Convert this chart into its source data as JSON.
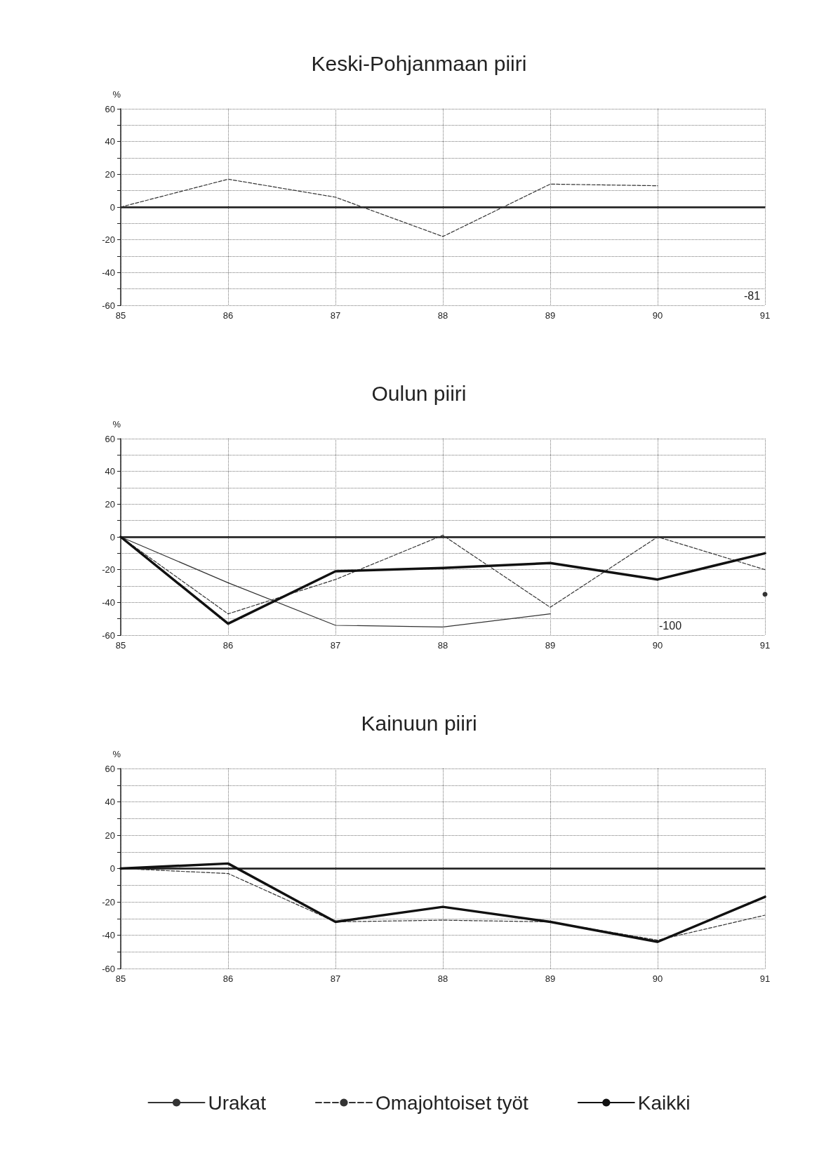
{
  "chart_data": [
    {
      "type": "line",
      "title": "Keski-Pohjanmaan piiri",
      "ylabel": "%",
      "categories": [
        "85",
        "86",
        "87",
        "88",
        "89",
        "90",
        "91"
      ],
      "series": [
        {
          "color": "#333333",
          "line_style": "dashed",
          "values": [
            0,
            17,
            6,
            -18,
            14,
            13,
            null
          ]
        }
      ],
      "ylim": [
        -60,
        60
      ],
      "yticks": [
        -60,
        {
          "value": -50,
          "label": null
        },
        -40,
        {
          "value": -30,
          "label": null
        },
        -20,
        {
          "value": -10,
          "label": null
        },
        0,
        {
          "value": 10,
          "label": null
        },
        20,
        {
          "value": 30,
          "label": null
        },
        40,
        {
          "value": 50,
          "label": null
        },
        60
      ],
      "grid": true,
      "marker": "none",
      "ref_lines": [
        {
          "axis": "y",
          "value": 0,
          "color": "#222222",
          "line_style": "solid"
        }
      ],
      "annotations": [
        "-81"
      ]
    },
    {
      "type": "line",
      "title": "Oulun piiri",
      "ylabel": "%",
      "categories": [
        "85",
        "86",
        "87",
        "88",
        "89",
        "90",
        "91"
      ],
      "series": [
        {
          "color": "#333333",
          "line_style": "solid",
          "values": [
            0,
            -28,
            -54,
            -55,
            -47,
            null,
            -35
          ]
        },
        {
          "color": "#333333",
          "line_style": "dashed",
          "values": [
            0,
            -47,
            -26,
            1,
            -43,
            0,
            -20
          ]
        },
        {
          "color": "#111111",
          "line_style": "solid",
          "values": [
            0,
            -53,
            -21,
            -19,
            -16,
            -26,
            -10
          ]
        }
      ],
      "ylim": [
        -60,
        60
      ],
      "yticks": [
        -60,
        {
          "value": -50,
          "label": null
        },
        -40,
        {
          "value": -30,
          "label": null
        },
        -20,
        {
          "value": -10,
          "label": null
        },
        0,
        {
          "value": 10,
          "label": null
        },
        20,
        {
          "value": 30,
          "label": null
        },
        40,
        {
          "value": 50,
          "label": null
        },
        60
      ],
      "grid": true,
      "marker": "none",
      "ref_lines": [
        {
          "axis": "y",
          "value": 0,
          "color": "#222222",
          "line_style": "solid"
        }
      ],
      "annotations": [
        "-100"
      ]
    },
    {
      "type": "line",
      "title": "Kainuun piiri",
      "ylabel": "%",
      "categories": [
        "85",
        "86",
        "87",
        "88",
        "89",
        "90",
        "91"
      ],
      "series": [
        {
          "name": "Urakat",
          "color": "#333333",
          "line_style": "solid",
          "values": [
            null,
            null,
            null,
            null,
            null,
            null,
            null
          ]
        },
        {
          "name": "Omajohtoiset työt",
          "color": "#333333",
          "line_style": "dashed",
          "values": [
            0,
            -3,
            -32,
            -31,
            -32,
            -43,
            -28
          ]
        },
        {
          "name": "Kaikki",
          "color": "#111111",
          "line_style": "solid",
          "values": [
            0,
            3,
            -32,
            -23,
            -32,
            -44,
            -17
          ]
        }
      ],
      "ylim": [
        -60,
        60
      ],
      "yticks": [
        -60,
        {
          "value": -50,
          "label": null
        },
        -40,
        {
          "value": -30,
          "label": null
        },
        -20,
        {
          "value": -10,
          "label": null
        },
        0,
        {
          "value": 10,
          "label": null
        },
        20,
        {
          "value": 30,
          "label": null
        },
        40,
        {
          "value": 50,
          "label": null
        },
        60
      ],
      "grid": true,
      "marker": "none",
      "legend": "bottom",
      "ref_lines": [
        {
          "axis": "y",
          "value": 0,
          "color": "#222222",
          "line_style": "solid"
        }
      ]
    }
  ]
}
